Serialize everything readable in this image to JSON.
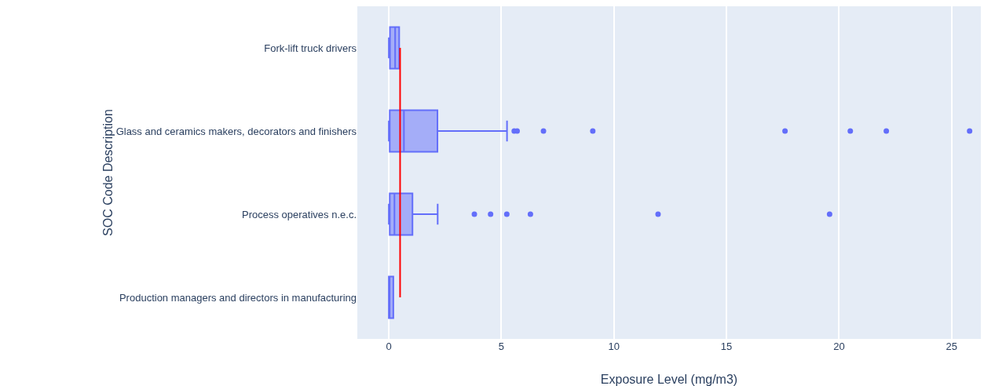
{
  "chart_data": {
    "type": "box",
    "orientation": "horizontal",
    "xlabel": "Exposure Level (mg/m3)",
    "ylabel": "SOC Code Description",
    "categories": [
      "Fork-lift truck drivers",
      "Glass and ceramics makers, decorators and finishers",
      "Process operatives n.e.c.",
      "Production managers and directors in manufacturing"
    ],
    "series": [
      {
        "color": "#636efa",
        "boxes": [
          {
            "low": 0,
            "q1": 0.05,
            "median": 0.28,
            "q3": 0.46,
            "high": 0.46
          },
          {
            "low": 0,
            "q1": 0.04,
            "median": 0.67,
            "q3": 2.16,
            "high": 5.25,
            "outliers": [
              5.57,
              5.7,
              6.87,
              9.06,
              17.6,
              20.5,
              22.1,
              25.8
            ]
          },
          {
            "low": 0,
            "q1": 0.04,
            "median": 0.25,
            "q3": 1.05,
            "high": 2.17,
            "outliers": [
              3.8,
              4.52,
              5.24,
              6.29,
              11.96,
              19.58
            ]
          },
          {
            "q1": 0,
            "median": 0,
            "q3": 0.2,
            "high": 0.2
          }
        ]
      }
    ],
    "ref_lines": [
      {
        "axis": "x",
        "value": 0.5,
        "color": "#ff0000"
      }
    ],
    "xlim": [
      -1.4,
      26.3
    ],
    "xticks": [
      0,
      5,
      10,
      15,
      20,
      25
    ],
    "grid": "x"
  }
}
